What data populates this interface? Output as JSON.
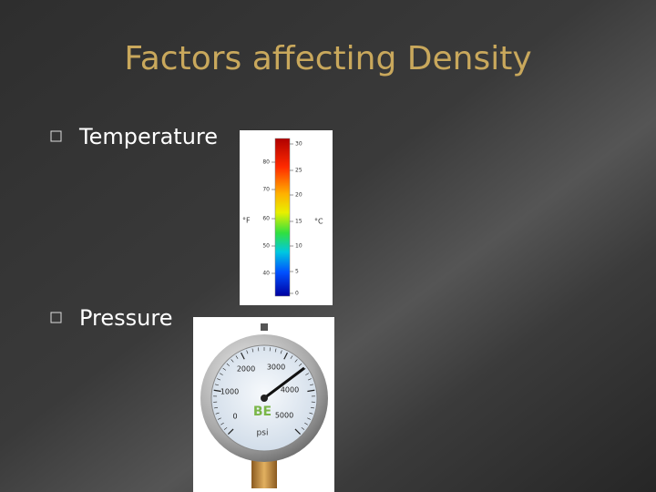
{
  "title": "Factors affecting Density",
  "bullets": [
    "Temperature",
    "Pressure"
  ],
  "thermometer": {
    "fahrenheit_unit": "°F",
    "fahrenheit_labels": [
      "80",
      "70",
      "60",
      "50",
      "40"
    ],
    "celsius_unit": "°C",
    "celsius_labels": [
      "30",
      "25",
      "20",
      "15",
      "10",
      "5",
      "0"
    ]
  },
  "gauge": {
    "labels": [
      "0",
      "1000",
      "2000",
      "3000",
      "4000",
      "5000"
    ],
    "brand": "BE",
    "unit": "psi"
  }
}
